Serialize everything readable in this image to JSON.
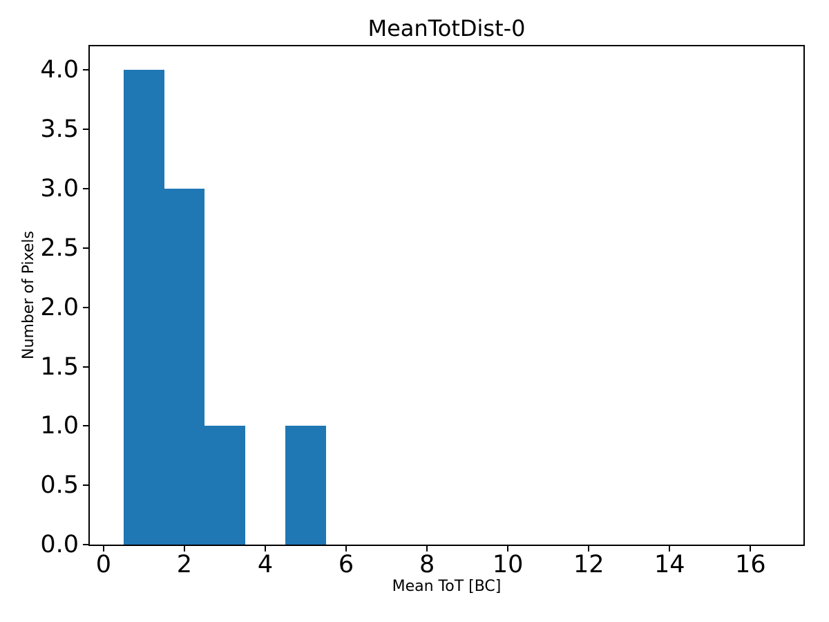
{
  "chart_data": {
    "type": "bar",
    "subtype": "histogram",
    "title": "MeanTotDist-0",
    "xlabel": "Mean ToT [BC]",
    "ylabel": "Number of Pixels",
    "bar_color": "#1f77b4",
    "axis_color": "#000000",
    "background_color": "#ffffff",
    "bars": [
      {
        "x0": 0.5,
        "x1": 1.5,
        "height": 4
      },
      {
        "x0": 1.5,
        "x1": 2.5,
        "height": 3
      },
      {
        "x0": 2.5,
        "x1": 3.5,
        "height": 1
      },
      {
        "x0": 4.5,
        "x1": 5.5,
        "height": 1
      }
    ],
    "xlim": [
      -0.34,
      17.31
    ],
    "ylim": [
      0,
      4.2
    ],
    "xticks": [
      0,
      2,
      4,
      6,
      8,
      10,
      12,
      14,
      16
    ],
    "xtick_labels": [
      "0",
      "2",
      "4",
      "6",
      "8",
      "10",
      "12",
      "14",
      "16"
    ],
    "yticks": [
      0.0,
      0.5,
      1.0,
      1.5,
      2.0,
      2.5,
      3.0,
      3.5,
      4.0
    ],
    "ytick_labels": [
      "0.0",
      "0.5",
      "1.0",
      "1.5",
      "2.0",
      "2.5",
      "3.0",
      "3.5",
      "4.0"
    ],
    "grid": false,
    "legend": null
  }
}
